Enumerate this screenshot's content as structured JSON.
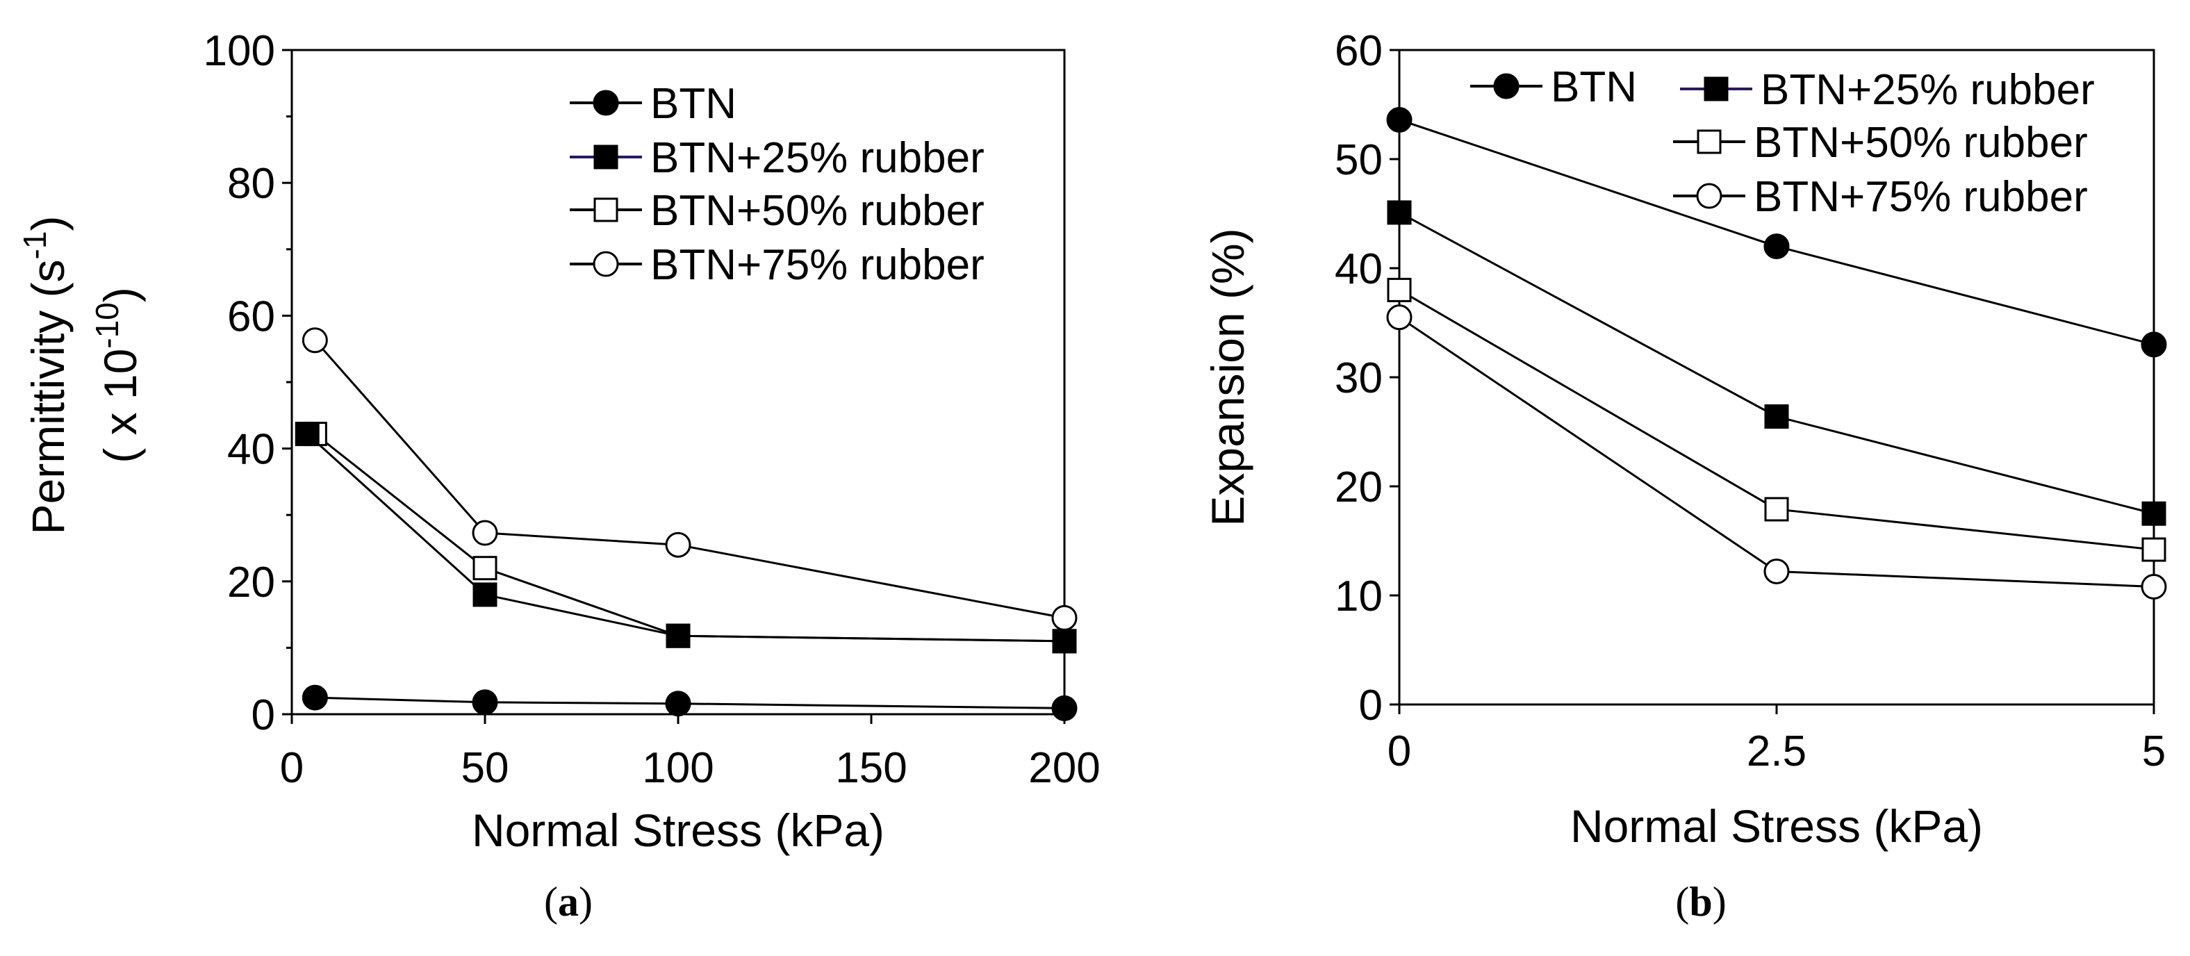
{
  "figure": {
    "panel_labels": [
      {
        "open": "(",
        "letter": "a",
        "close": ")"
      },
      {
        "open": "(",
        "letter": "b",
        "close": ")"
      }
    ]
  },
  "chart_data": [
    {
      "id": "a",
      "type": "line",
      "title": "",
      "xlabel": "Normal Stress (kPa)",
      "ylabel": {
        "line1": "Permittivity (s",
        "line1_sup": "-1",
        "line1_end": ")",
        "line2": "( x 10",
        "line2_sup": "-10",
        "line2_end": ")"
      },
      "xlim": [
        0,
        200
      ],
      "ylim": [
        0,
        100
      ],
      "xticks": [
        0,
        50,
        100,
        150,
        200
      ],
      "xtick_labels": [
        "0",
        "50",
        "100",
        "150",
        "200"
      ],
      "xtick_positions": [
        0,
        50,
        100,
        150,
        200
      ],
      "yticks": [
        0,
        20,
        40,
        60,
        80,
        100
      ],
      "ytick_labels": [
        "0",
        "20",
        "40",
        "60",
        "80",
        "100"
      ],
      "legend_position": "top-right",
      "series": [
        {
          "name": "BTN",
          "marker": "circle-filled",
          "color": "#000000",
          "x": [
            6,
            50,
            100,
            200
          ],
          "y": [
            2.5,
            1.8,
            1.6,
            0.9
          ]
        },
        {
          "name": "BTN+25% rubber",
          "marker": "square-filled",
          "color": "#000000",
          "legend_line_color": "#2a1a5e",
          "x": [
            4,
            50,
            100,
            200
          ],
          "y": [
            42.2,
            18,
            11.8,
            11
          ]
        },
        {
          "name": "BTN+50% rubber",
          "marker": "square-open",
          "color": "#000000",
          "x": [
            6,
            50,
            100,
            200
          ],
          "y": [
            42.2,
            22,
            11.8,
            11
          ]
        },
        {
          "name": "BTN+75% rubber",
          "marker": "circle-open",
          "color": "#000000",
          "x": [
            6,
            50,
            100,
            200
          ],
          "y": [
            56.3,
            27.3,
            25.5,
            14.5
          ]
        }
      ]
    },
    {
      "id": "b",
      "type": "line",
      "title": "",
      "xlabel": "Normal Stress (kPa)",
      "ylabel": "Expansion (%)",
      "xlim": [
        0,
        5
      ],
      "ylim": [
        0,
        60
      ],
      "xticks": [
        0,
        2.5,
        5
      ],
      "xtick_labels": [
        "0",
        "2.5",
        "5"
      ],
      "yticks": [
        0,
        10,
        20,
        30,
        40,
        50,
        60
      ],
      "ytick_labels": [
        "0",
        "10",
        "20",
        "30",
        "40",
        "50",
        "60"
      ],
      "legend_position": "top",
      "series": [
        {
          "name": "BTN",
          "marker": "circle-filled",
          "color": "#000000",
          "x": [
            0,
            2.5,
            5
          ],
          "y": [
            53.6,
            42,
            33
          ]
        },
        {
          "name": "BTN+25% rubber",
          "marker": "square-filled",
          "color": "#000000",
          "legend_line_color": "#2a1a5e",
          "x": [
            0,
            2.5,
            5
          ],
          "y": [
            45.1,
            26.4,
            17.5
          ]
        },
        {
          "name": "BTN+50% rubber",
          "marker": "square-open",
          "color": "#000000",
          "x": [
            0,
            2.5,
            5
          ],
          "y": [
            38,
            17.9,
            14.2
          ]
        },
        {
          "name": "BTN+75% rubber",
          "marker": "circle-open",
          "color": "#000000",
          "x": [
            0,
            2.5,
            5
          ],
          "y": [
            35.5,
            12.2,
            10.8
          ]
        }
      ]
    }
  ]
}
